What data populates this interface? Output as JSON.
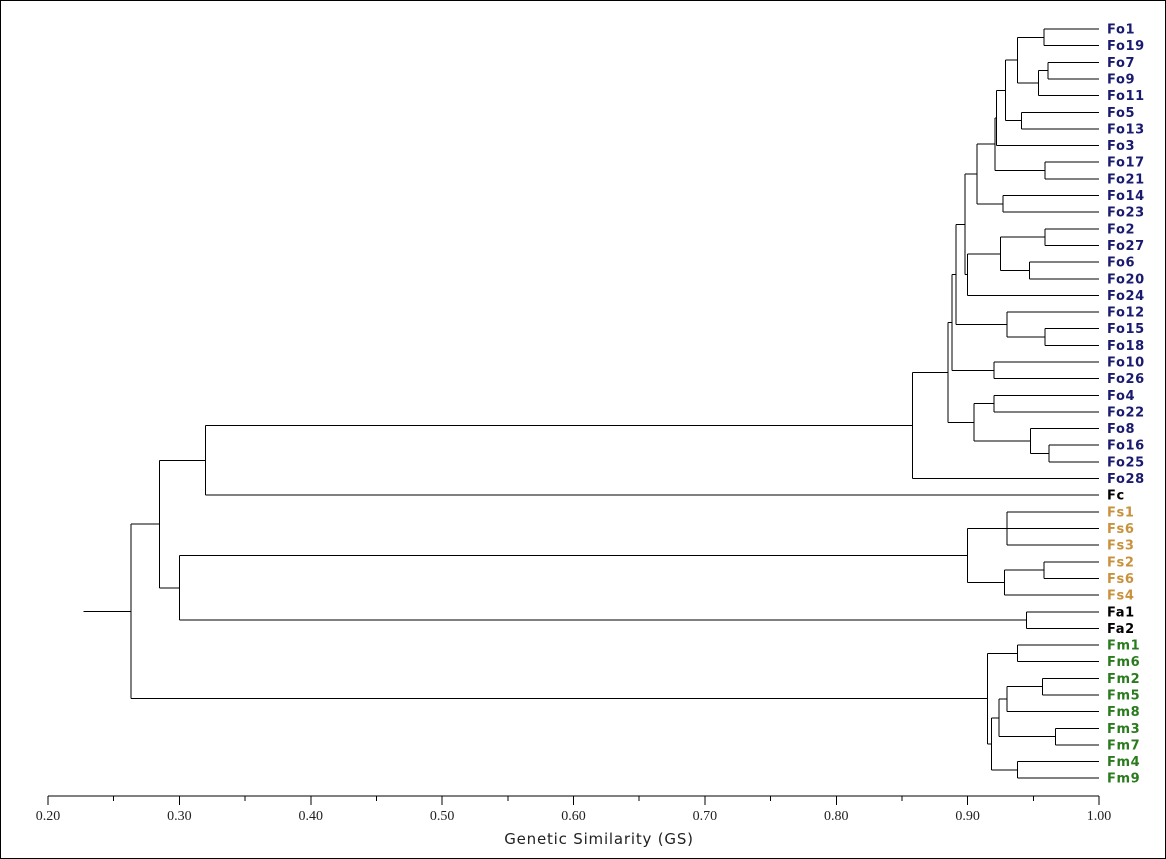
{
  "chart_data": {
    "type": "dendrogram",
    "xlabel": "Genetic Similarity (GS)",
    "xlim": [
      0.2,
      1.0
    ],
    "ticks": [
      "0.20",
      "0.30",
      "0.40",
      "0.50",
      "0.60",
      "0.70",
      "0.80",
      "0.90",
      "1.00"
    ],
    "tick_values": [
      0.2,
      0.3,
      0.4,
      0.5,
      0.6,
      0.7,
      0.8,
      0.9,
      1.0
    ],
    "group_colors": {
      "Fo": "#1a1a6e",
      "Fs": "#c8913c",
      "Fm": "#2a7a1e",
      "other": "#000000"
    },
    "leaves": [
      {
        "label": "Fo1",
        "group": "Fo"
      },
      {
        "label": "Fo19",
        "group": "Fo"
      },
      {
        "label": "Fo7",
        "group": "Fo"
      },
      {
        "label": "Fo9",
        "group": "Fo"
      },
      {
        "label": "Fo11",
        "group": "Fo"
      },
      {
        "label": "Fo5",
        "group": "Fo"
      },
      {
        "label": "Fo13",
        "group": "Fo"
      },
      {
        "label": "Fo3",
        "group": "Fo"
      },
      {
        "label": "Fo17",
        "group": "Fo"
      },
      {
        "label": "Fo21",
        "group": "Fo"
      },
      {
        "label": "Fo14",
        "group": "Fo"
      },
      {
        "label": "Fo23",
        "group": "Fo"
      },
      {
        "label": "Fo2",
        "group": "Fo"
      },
      {
        "label": "Fo27",
        "group": "Fo"
      },
      {
        "label": "Fo6",
        "group": "Fo"
      },
      {
        "label": "Fo20",
        "group": "Fo"
      },
      {
        "label": "Fo24",
        "group": "Fo"
      },
      {
        "label": "Fo12",
        "group": "Fo"
      },
      {
        "label": "Fo15",
        "group": "Fo"
      },
      {
        "label": "Fo18",
        "group": "Fo"
      },
      {
        "label": "Fo10",
        "group": "Fo"
      },
      {
        "label": "Fo26",
        "group": "Fo"
      },
      {
        "label": "Fo4",
        "group": "Fo"
      },
      {
        "label": "Fo22",
        "group": "Fo"
      },
      {
        "label": "Fo8",
        "group": "Fo"
      },
      {
        "label": "Fo16",
        "group": "Fo"
      },
      {
        "label": "Fo25",
        "group": "Fo"
      },
      {
        "label": "Fo28",
        "group": "Fo"
      },
      {
        "label": "Fc",
        "group": "other"
      },
      {
        "label": "Fs1",
        "group": "Fs"
      },
      {
        "label": "Fs6",
        "group": "Fs"
      },
      {
        "label": "Fs3",
        "group": "Fs"
      },
      {
        "label": "Fs2",
        "group": "Fs"
      },
      {
        "label": "Fs6",
        "group": "Fs"
      },
      {
        "label": "Fs4",
        "group": "Fs"
      },
      {
        "label": "Fa1",
        "group": "other"
      },
      {
        "label": "Fa2",
        "group": "other"
      },
      {
        "label": "Fm1",
        "group": "Fm"
      },
      {
        "label": "Fm6",
        "group": "Fm"
      },
      {
        "label": "Fm2",
        "group": "Fm"
      },
      {
        "label": "Fm5",
        "group": "Fm"
      },
      {
        "label": "Fm8",
        "group": "Fm"
      },
      {
        "label": "Fm3",
        "group": "Fm"
      },
      {
        "label": "Fm7",
        "group": "Fm"
      },
      {
        "label": "Fm4",
        "group": "Fm"
      },
      {
        "label": "Fm9",
        "group": "Fm"
      }
    ],
    "root_stub": 0.227,
    "tree": {
      "h": 0.263,
      "c": [
        {
          "h": 0.285,
          "c": [
            {
              "h": 0.32,
              "c": [
                {
                  "h": 0.858,
                  "c": [
                    {
                      "h": 0.885,
                      "c": [
                        {
                          "h": 0.888,
                          "c": [
                            {
                              "h": 0.891,
                              "c": [
                                {
                                  "h": 0.898,
                                  "c": [
                                    {
                                      "h": 0.907,
                                      "c": [
                                        {
                                          "h": 0.921,
                                          "c": [
                                            {
                                              "h": 0.922,
                                              "c": [
                                                {
                                                  "h": 0.929,
                                                  "c": [
                                                    {
                                                      "h": 0.938,
                                                      "c": [
                                                        {
                                                          "h": 0.958,
                                                          "c": [
                                                            {
                                                              "l": 0
                                                            },
                                                            {
                                                              "l": 1
                                                            }
                                                          ]
                                                        },
                                                        {
                                                          "h": 0.954,
                                                          "c": [
                                                            {
                                                              "h": 0.961,
                                                              "c": [
                                                                {
                                                                  "l": 2
                                                                },
                                                                {
                                                                  "l": 3
                                                                }
                                                              ]
                                                            },
                                                            {
                                                              "l": 4
                                                            }
                                                          ]
                                                        }
                                                      ]
                                                    },
                                                    {
                                                      "h": 0.941,
                                                      "c": [
                                                        {
                                                          "l": 5
                                                        },
                                                        {
                                                          "l": 6
                                                        }
                                                      ]
                                                    }
                                                  ]
                                                },
                                                {
                                                  "l": 7
                                                }
                                              ]
                                            },
                                            {
                                              "h": 0.959,
                                              "c": [
                                                {
                                                  "l": 8
                                                },
                                                {
                                                  "l": 9
                                                }
                                              ]
                                            }
                                          ]
                                        },
                                        {
                                          "h": 0.927,
                                          "c": [
                                            {
                                              "l": 10
                                            },
                                            {
                                              "l": 11
                                            }
                                          ]
                                        }
                                      ]
                                    },
                                    {
                                      "h": 0.9,
                                      "c": [
                                        {
                                          "h": 0.925,
                                          "c": [
                                            {
                                              "h": 0.959,
                                              "c": [
                                                {
                                                  "l": 12
                                                },
                                                {
                                                  "l": 13
                                                }
                                              ]
                                            },
                                            {
                                              "h": 0.947,
                                              "c": [
                                                {
                                                  "l": 14
                                                },
                                                {
                                                  "l": 15
                                                }
                                              ]
                                            }
                                          ]
                                        },
                                        {
                                          "l": 16
                                        }
                                      ]
                                    }
                                  ]
                                },
                                {
                                  "h": 0.93,
                                  "c": [
                                    {
                                      "l": 17
                                    },
                                    {
                                      "h": 0.959,
                                      "c": [
                                        {
                                          "l": 18
                                        },
                                        {
                                          "l": 19
                                        }
                                      ]
                                    }
                                  ]
                                }
                              ]
                            },
                            {
                              "h": 0.92,
                              "c": [
                                {
                                  "l": 20
                                },
                                {
                                  "l": 21
                                }
                              ]
                            }
                          ]
                        },
                        {
                          "h": 0.905,
                          "c": [
                            {
                              "h": 0.92,
                              "c": [
                                {
                                  "l": 22
                                },
                                {
                                  "l": 23
                                }
                              ]
                            },
                            {
                              "h": 0.948,
                              "c": [
                                {
                                  "l": 24
                                },
                                {
                                  "h": 0.962,
                                  "c": [
                                    {
                                      "l": 25
                                    },
                                    {
                                      "l": 26
                                    }
                                  ]
                                }
                              ]
                            }
                          ]
                        }
                      ]
                    },
                    {
                      "l": 27
                    }
                  ]
                },
                {
                  "l": 28
                }
              ]
            },
            {
              "h": 0.3,
              "c": [
                {
                  "h": 0.9,
                  "c": [
                    {
                      "h": 0.93,
                      "c": [
                        {
                          "l": 29
                        },
                        {
                          "l": 30
                        },
                        {
                          "l": 31
                        }
                      ]
                    },
                    {
                      "h": 0.928,
                      "c": [
                        {
                          "h": 0.958,
                          "c": [
                            {
                              "l": 32
                            },
                            {
                              "l": 33
                            }
                          ]
                        },
                        {
                          "l": 34
                        }
                      ]
                    }
                  ]
                },
                {
                  "h": 0.945,
                  "c": [
                    {
                      "l": 35
                    },
                    {
                      "l": 36
                    }
                  ]
                }
              ]
            }
          ]
        },
        {
          "h": 0.915,
          "c": [
            {
              "h": 0.938,
              "c": [
                {
                  "l": 37
                },
                {
                  "l": 38
                }
              ]
            },
            {
              "h": 0.918,
              "c": [
                {
                  "h": 0.92,
                  "c": [
                    {
                      "h": 0.924,
                      "c": [
                        {
                          "h": 0.93,
                          "c": [
                            {
                              "h": 0.957,
                              "c": [
                                {
                                  "l": 39
                                },
                                {
                                  "l": 40
                                }
                              ]
                            },
                            {
                              "l": 41
                            }
                          ]
                        },
                        {
                          "h": 0.967,
                          "c": [
                            {
                              "l": 42
                            },
                            {
                              "l": 43
                            }
                          ]
                        }
                      ]
                    }
                  ]
                },
                {
                  "h": 0.938,
                  "c": [
                    {
                      "l": 44
                    },
                    {
                      "l": 45
                    }
                  ]
                }
              ]
            }
          ]
        }
      ]
    }
  }
}
